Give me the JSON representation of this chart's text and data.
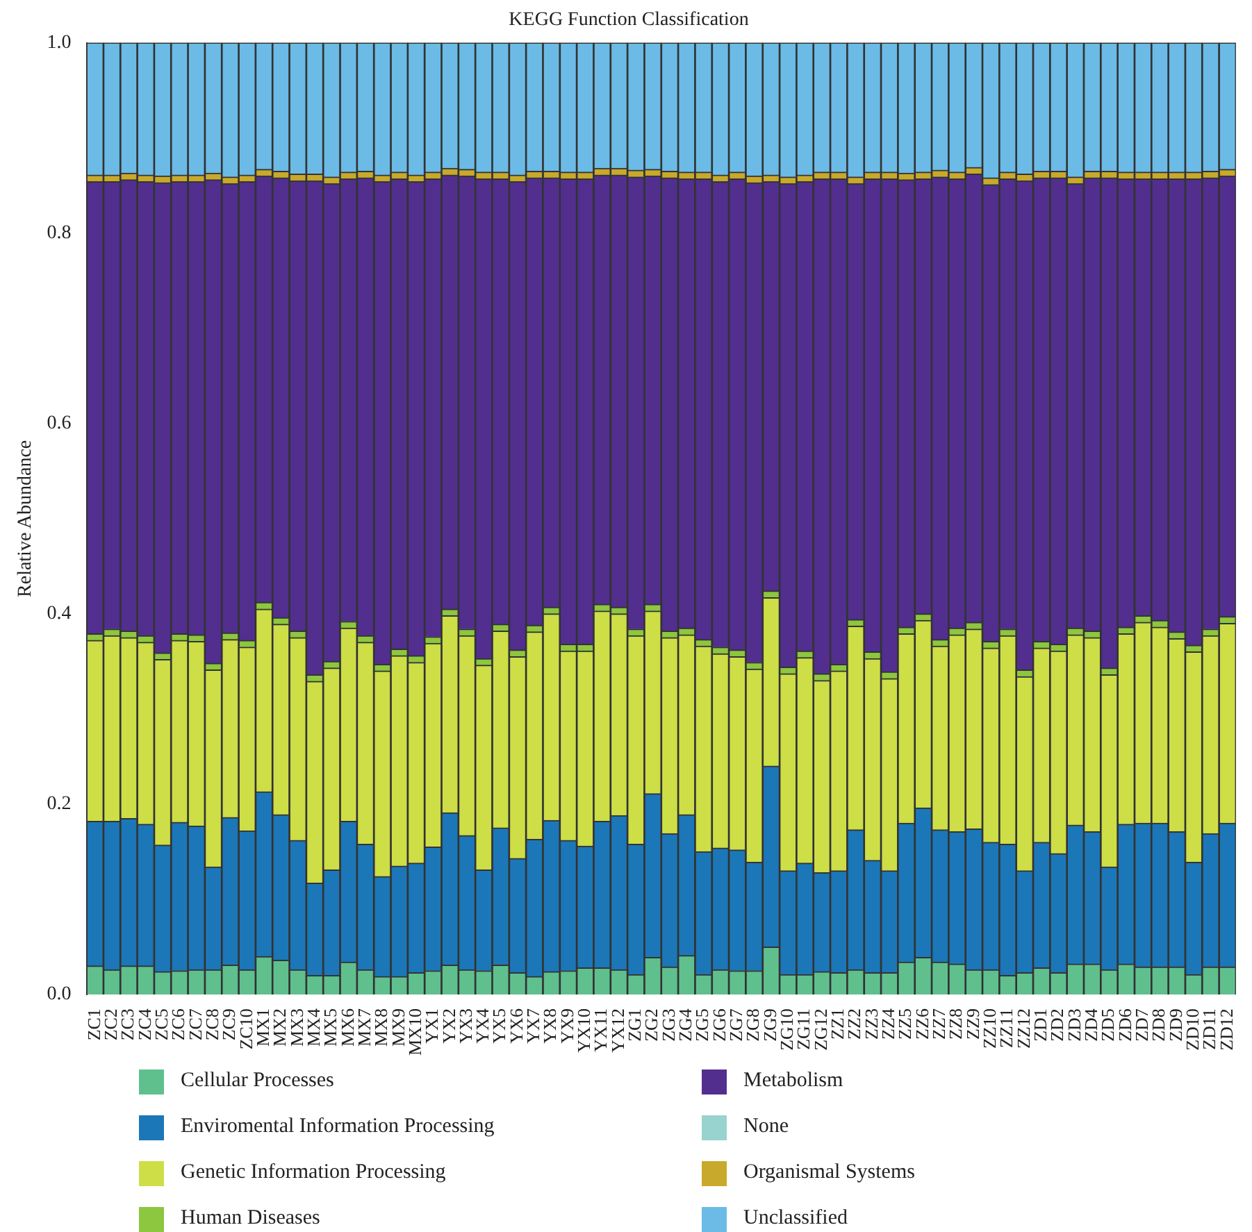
{
  "chart_data": {
    "type": "bar",
    "stacked": true,
    "title": "KEGG Function Classification",
    "ylabel": "Relative Abundance",
    "categories": [
      "ZC1",
      "ZC2",
      "ZC3",
      "ZC4",
      "ZC5",
      "ZC6",
      "ZC7",
      "ZC8",
      "ZC9",
      "ZC10",
      "MX1",
      "MX2",
      "MX3",
      "MX4",
      "MX5",
      "MX6",
      "MX7",
      "MX8",
      "MX9",
      "MX10",
      "YX1",
      "YX2",
      "YX3",
      "YX4",
      "YX5",
      "YX6",
      "YX7",
      "YX8",
      "YX9",
      "YX10",
      "YX11",
      "YX12",
      "ZG1",
      "ZG2",
      "ZG3",
      "ZG4",
      "ZG5",
      "ZG6",
      "ZG7",
      "ZG8",
      "ZG9",
      "ZG10",
      "ZG11",
      "ZG12",
      "ZZ1",
      "ZZ2",
      "ZZ3",
      "ZZ4",
      "ZZ5",
      "ZZ6",
      "ZZ7",
      "ZZ8",
      "ZZ9",
      "ZZ10",
      "ZZ11",
      "ZZ12",
      "ZD1",
      "ZD2",
      "ZD3",
      "ZD4",
      "ZD5",
      "ZD6",
      "ZD7",
      "ZD8",
      "ZD9",
      "ZD10",
      "ZD11",
      "ZD12"
    ],
    "series": [
      {
        "name": "Cellular Processes",
        "color": "#5fc08e",
        "values": [
          0.03,
          0.026,
          0.03,
          0.03,
          0.024,
          0.025,
          0.026,
          0.026,
          0.031,
          0.026,
          0.04,
          0.036,
          0.026,
          0.02,
          0.02,
          0.034,
          0.026,
          0.019,
          0.019,
          0.023,
          0.025,
          0.031,
          0.026,
          0.025,
          0.031,
          0.023,
          0.019,
          0.024,
          0.025,
          0.028,
          0.028,
          0.026,
          0.021,
          0.039,
          0.029,
          0.041,
          0.021,
          0.026,
          0.025,
          0.025,
          0.05,
          0.021,
          0.021,
          0.024,
          0.023,
          0.026,
          0.023,
          0.023,
          0.034,
          0.039,
          0.034,
          0.032,
          0.026,
          0.026,
          0.02,
          0.023,
          0.028,
          0.023,
          0.032,
          0.032,
          0.026,
          0.032,
          0.029,
          0.029,
          0.029,
          0.021,
          0.029,
          0.029
        ]
      },
      {
        "name": "Enviromental Information Processing",
        "color": "#1b77b8",
        "values": [
          0.152,
          0.156,
          0.155,
          0.149,
          0.133,
          0.156,
          0.151,
          0.108,
          0.155,
          0.146,
          0.173,
          0.153,
          0.136,
          0.097,
          0.111,
          0.148,
          0.132,
          0.105,
          0.116,
          0.115,
          0.13,
          0.16,
          0.141,
          0.106,
          0.144,
          0.12,
          0.144,
          0.159,
          0.137,
          0.128,
          0.154,
          0.162,
          0.137,
          0.172,
          0.14,
          0.148,
          0.129,
          0.128,
          0.127,
          0.114,
          0.19,
          0.109,
          0.117,
          0.104,
          0.107,
          0.147,
          0.118,
          0.107,
          0.146,
          0.157,
          0.139,
          0.139,
          0.148,
          0.134,
          0.138,
          0.107,
          0.132,
          0.125,
          0.146,
          0.139,
          0.108,
          0.147,
          0.151,
          0.151,
          0.142,
          0.118,
          0.14,
          0.151
        ]
      },
      {
        "name": "Genetic Information Processing",
        "color": "#cdde47",
        "values": [
          0.19,
          0.195,
          0.19,
          0.191,
          0.195,
          0.191,
          0.194,
          0.207,
          0.187,
          0.193,
          0.192,
          0.2,
          0.213,
          0.212,
          0.212,
          0.203,
          0.212,
          0.216,
          0.221,
          0.211,
          0.214,
          0.207,
          0.21,
          0.215,
          0.207,
          0.212,
          0.218,
          0.217,
          0.199,
          0.205,
          0.221,
          0.212,
          0.219,
          0.192,
          0.206,
          0.189,
          0.216,
          0.204,
          0.203,
          0.203,
          0.177,
          0.207,
          0.216,
          0.202,
          0.21,
          0.214,
          0.212,
          0.202,
          0.199,
          0.197,
          0.193,
          0.207,
          0.21,
          0.204,
          0.219,
          0.204,
          0.204,
          0.213,
          0.2,
          0.204,
          0.202,
          0.2,
          0.211,
          0.206,
          0.203,
          0.221,
          0.208,
          0.21
        ]
      },
      {
        "name": "Human Diseases",
        "color": "#8dc63f",
        "values": [
          0.007,
          0.007,
          0.007,
          0.007,
          0.007,
          0.007,
          0.007,
          0.007,
          0.007,
          0.007,
          0.007,
          0.007,
          0.007,
          0.007,
          0.007,
          0.007,
          0.007,
          0.007,
          0.007,
          0.007,
          0.007,
          0.007,
          0.007,
          0.007,
          0.007,
          0.007,
          0.007,
          0.007,
          0.007,
          0.007,
          0.007,
          0.007,
          0.007,
          0.007,
          0.007,
          0.007,
          0.007,
          0.007,
          0.007,
          0.007,
          0.007,
          0.007,
          0.007,
          0.007,
          0.007,
          0.007,
          0.007,
          0.007,
          0.007,
          0.007,
          0.007,
          0.007,
          0.007,
          0.007,
          0.007,
          0.007,
          0.007,
          0.007,
          0.007,
          0.007,
          0.007,
          0.007,
          0.007,
          0.007,
          0.007,
          0.007,
          0.007,
          0.007
        ]
      },
      {
        "name": "Metabolism",
        "color": "#522e8f",
        "values": [
          0.475,
          0.47,
          0.474,
          0.477,
          0.494,
          0.475,
          0.476,
          0.508,
          0.472,
          0.482,
          0.448,
          0.462,
          0.473,
          0.519,
          0.502,
          0.465,
          0.481,
          0.507,
          0.494,
          0.498,
          0.481,
          0.456,
          0.476,
          0.504,
          0.468,
          0.492,
          0.47,
          0.451,
          0.489,
          0.489,
          0.451,
          0.454,
          0.475,
          0.45,
          0.476,
          0.472,
          0.484,
          0.489,
          0.495,
          0.504,
          0.43,
          0.508,
          0.493,
          0.52,
          0.51,
          0.458,
          0.497,
          0.518,
          0.47,
          0.457,
          0.486,
          0.472,
          0.471,
          0.48,
          0.473,
          0.514,
          0.487,
          0.49,
          0.467,
          0.476,
          0.515,
          0.471,
          0.459,
          0.464,
          0.476,
          0.49,
          0.474,
          0.463
        ]
      },
      {
        "name": "None",
        "color": "#98d3cf",
        "values": [
          0,
          0,
          0,
          0,
          0,
          0,
          0,
          0,
          0,
          0,
          0,
          0,
          0,
          0,
          0,
          0,
          0,
          0,
          0,
          0,
          0,
          0,
          0,
          0,
          0,
          0,
          0,
          0,
          0,
          0,
          0,
          0,
          0,
          0,
          0,
          0,
          0,
          0,
          0,
          0,
          0,
          0,
          0,
          0,
          0,
          0,
          0,
          0,
          0,
          0,
          0,
          0,
          0,
          0,
          0,
          0,
          0,
          0,
          0,
          0,
          0,
          0,
          0,
          0,
          0,
          0,
          0,
          0
        ]
      },
      {
        "name": "Organismal Systems",
        "color": "#c9a92b",
        "values": [
          0.007,
          0.007,
          0.007,
          0.007,
          0.007,
          0.007,
          0.007,
          0.007,
          0.007,
          0.007,
          0.007,
          0.007,
          0.007,
          0.007,
          0.007,
          0.007,
          0.007,
          0.007,
          0.007,
          0.007,
          0.007,
          0.007,
          0.007,
          0.007,
          0.007,
          0.007,
          0.007,
          0.007,
          0.007,
          0.007,
          0.007,
          0.007,
          0.007,
          0.007,
          0.007,
          0.007,
          0.007,
          0.007,
          0.007,
          0.007,
          0.007,
          0.007,
          0.007,
          0.007,
          0.007,
          0.007,
          0.007,
          0.007,
          0.007,
          0.007,
          0.007,
          0.007,
          0.007,
          0.007,
          0.007,
          0.007,
          0.007,
          0.007,
          0.007,
          0.007,
          0.007,
          0.007,
          0.007,
          0.007,
          0.007,
          0.007,
          0.007,
          0.007
        ]
      },
      {
        "name": "Unclassified",
        "color": "#6bbbe6",
        "values": [
          0.139,
          0.139,
          0.137,
          0.139,
          0.14,
          0.139,
          0.139,
          0.137,
          0.141,
          0.139,
          0.133,
          0.135,
          0.138,
          0.138,
          0.141,
          0.136,
          0.135,
          0.139,
          0.136,
          0.139,
          0.136,
          0.132,
          0.133,
          0.136,
          0.136,
          0.139,
          0.135,
          0.135,
          0.136,
          0.136,
          0.132,
          0.132,
          0.134,
          0.133,
          0.135,
          0.136,
          0.136,
          0.139,
          0.136,
          0.14,
          0.139,
          0.141,
          0.139,
          0.136,
          0.136,
          0.141,
          0.136,
          0.136,
          0.137,
          0.136,
          0.134,
          0.136,
          0.131,
          0.142,
          0.136,
          0.138,
          0.135,
          0.135,
          0.141,
          0.135,
          0.135,
          0.136,
          0.136,
          0.136,
          0.136,
          0.136,
          0.135,
          0.133
        ]
      }
    ],
    "ylim": [
      0,
      1
    ],
    "yticks": [
      {
        "value": 0,
        "label": "0.0"
      },
      0.2,
      0.4,
      0.6,
      0.8,
      {
        "value": 1,
        "label": "1.0"
      }
    ],
    "grid": false,
    "legend": "bottom"
  }
}
